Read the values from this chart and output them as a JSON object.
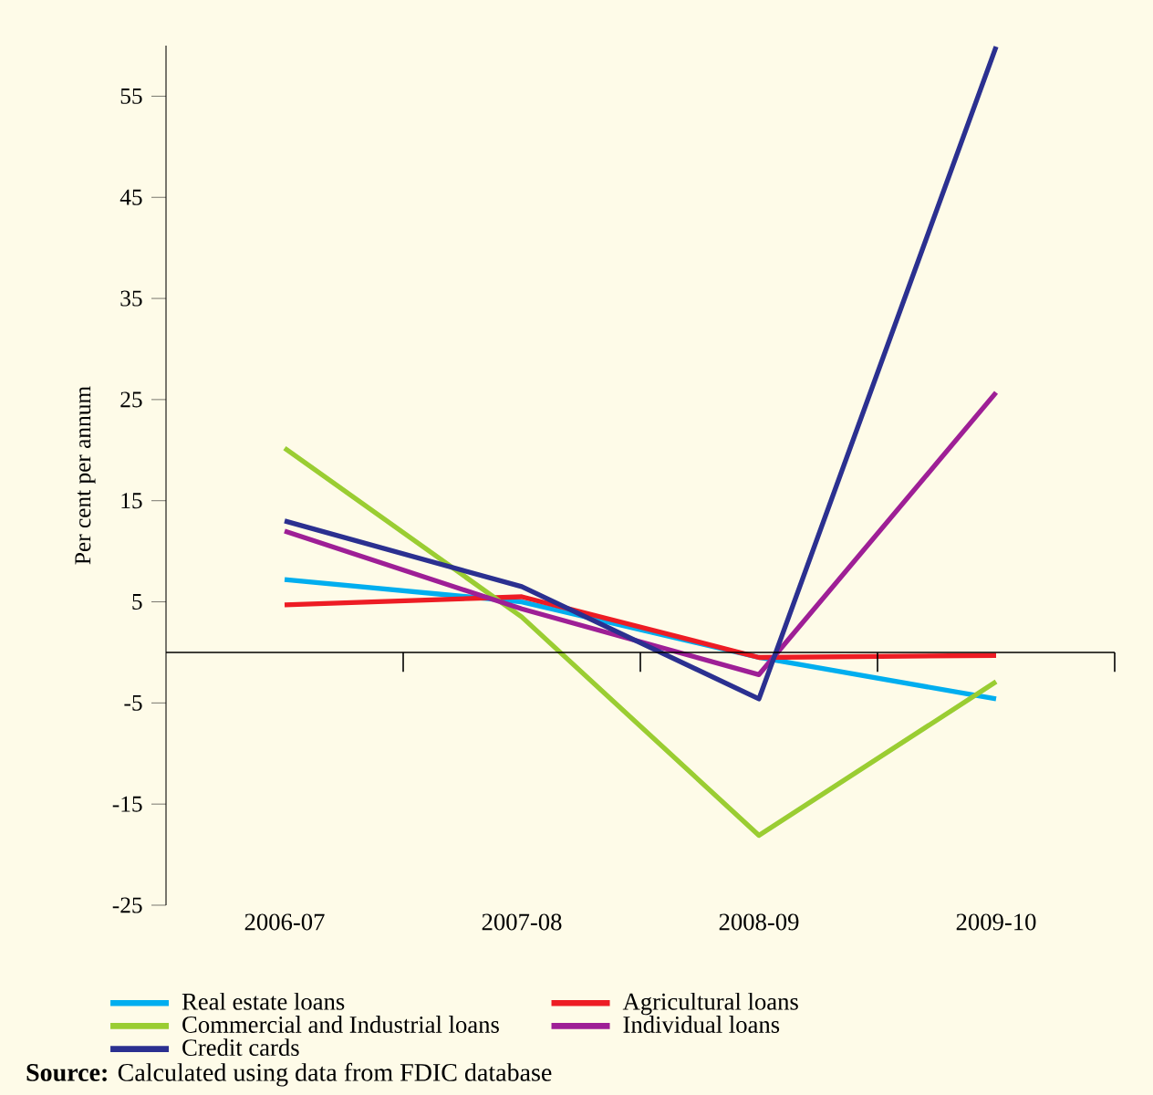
{
  "chart_data": {
    "type": "line",
    "ylabel": "Per cent per annum",
    "categories": [
      "2006-07",
      "2007-08",
      "2008-09",
      "2009-10"
    ],
    "ylim": [
      -25,
      60
    ],
    "yticks": [
      -25,
      -15,
      -5,
      5,
      15,
      25,
      35,
      45,
      55
    ],
    "legend": "bottom",
    "marker": "none",
    "line_style": "solid",
    "series": [
      {
        "name": "Real estate loans",
        "color": "#00aeef",
        "values": [
          7.2,
          5.0,
          -0.5,
          -4.6
        ]
      },
      {
        "name": "Agricultural loans",
        "color": "#ed1c24",
        "values": [
          4.7,
          5.5,
          -0.5,
          -0.3
        ]
      },
      {
        "name": "Commercial and Industrial loans",
        "color": "#9acd32",
        "values": [
          20.2,
          3.5,
          -18.1,
          -2.9
        ]
      },
      {
        "name": "Individual loans",
        "color": "#9e1f96",
        "values": [
          12.0,
          4.3,
          -2.2,
          25.7
        ]
      },
      {
        "name": "Credit cards",
        "color": "#2b3090",
        "values": [
          13.0,
          6.5,
          -4.6,
          59.9
        ]
      }
    ],
    "annotations": [
      "**Source:** Calculated using data from FDIC database"
    ]
  }
}
